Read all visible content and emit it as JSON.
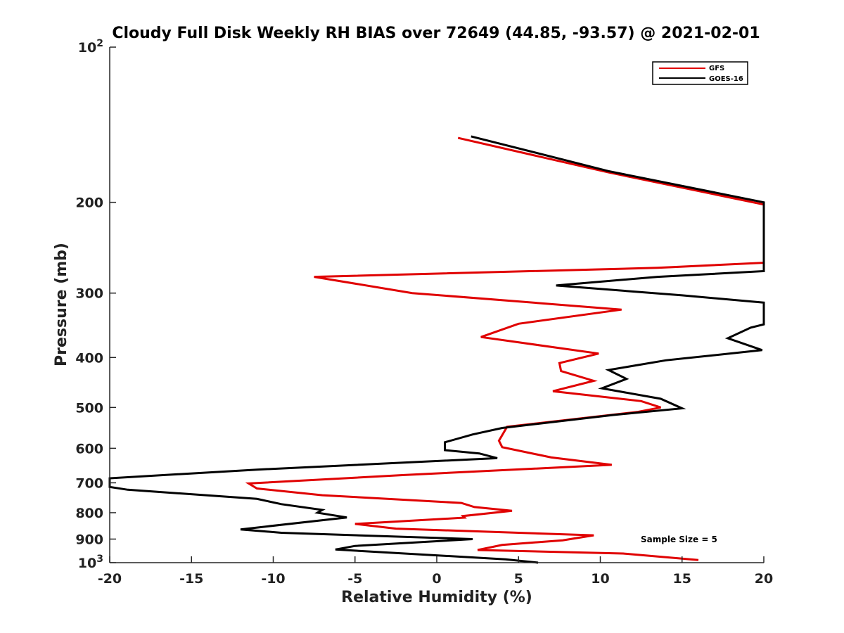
{
  "chart_data": {
    "type": "line",
    "orientation": "vertical-profile",
    "title": "Cloudy Full Disk Weekly RH BIAS over 72649 (44.85, -93.57) @ 2021-02-01",
    "xlabel": "Relative Humidity (%)",
    "ylabel": "Pressure (mb)",
    "xlim": [
      -20,
      20
    ],
    "ylim": [
      100,
      1000
    ],
    "y_scale": "log",
    "y_reversed": true,
    "grid": false,
    "legend_position": "top-right",
    "x_ticks": [
      {
        "value": -20,
        "label": "-20"
      },
      {
        "value": -15,
        "label": "-15"
      },
      {
        "value": -10,
        "label": "-10"
      },
      {
        "value": -5,
        "label": "-5"
      },
      {
        "value": 0,
        "label": "0"
      },
      {
        "value": 5,
        "label": "5"
      },
      {
        "value": 10,
        "label": "10"
      },
      {
        "value": 15,
        "label": "15"
      },
      {
        "value": 20,
        "label": "20"
      }
    ],
    "y_ticks": [
      {
        "value": 100,
        "base": "10",
        "exp": "2"
      },
      {
        "value": 200,
        "label": "200"
      },
      {
        "value": 300,
        "label": "300"
      },
      {
        "value": 400,
        "label": "400"
      },
      {
        "value": 500,
        "label": "500"
      },
      {
        "value": 600,
        "label": "600"
      },
      {
        "value": 700,
        "label": "700"
      },
      {
        "value": 800,
        "label": "800"
      },
      {
        "value": 900,
        "label": "900"
      },
      {
        "value": 1000,
        "base": "10",
        "exp": "3"
      }
    ],
    "annotation": "Sample Size = 5",
    "series": [
      {
        "name": "GFS",
        "color": "#e00000",
        "points": [
          {
            "x": 1.3,
            "p": 150
          },
          {
            "x": 10.5,
            "p": 175
          },
          {
            "x": 20,
            "p": 202
          },
          {
            "x": 20,
            "p": 262
          },
          {
            "x": 13.5,
            "p": 268
          },
          {
            "x": -7.5,
            "p": 279
          },
          {
            "x": -1.5,
            "p": 300
          },
          {
            "x": 11.3,
            "p": 323
          },
          {
            "x": 5.0,
            "p": 344
          },
          {
            "x": 2.7,
            "p": 365
          },
          {
            "x": 9.9,
            "p": 393
          },
          {
            "x": 7.5,
            "p": 410
          },
          {
            "x": 7.6,
            "p": 425
          },
          {
            "x": 9.6,
            "p": 444
          },
          {
            "x": 7.1,
            "p": 465
          },
          {
            "x": 12.5,
            "p": 486
          },
          {
            "x": 13.7,
            "p": 500
          },
          {
            "x": 12.3,
            "p": 510
          },
          {
            "x": 4.3,
            "p": 545
          },
          {
            "x": 3.8,
            "p": 580
          },
          {
            "x": 4.0,
            "p": 597
          },
          {
            "x": 7.0,
            "p": 625
          },
          {
            "x": 10.7,
            "p": 646
          },
          {
            "x": -2.0,
            "p": 676
          },
          {
            "x": -11.5,
            "p": 702
          },
          {
            "x": -11.0,
            "p": 718
          },
          {
            "x": -7.0,
            "p": 740
          },
          {
            "x": 1.5,
            "p": 766
          },
          {
            "x": 2.3,
            "p": 780
          },
          {
            "x": 4.6,
            "p": 793
          },
          {
            "x": 1.6,
            "p": 812
          },
          {
            "x": 1.7,
            "p": 818
          },
          {
            "x": -5.0,
            "p": 841
          },
          {
            "x": -2.5,
            "p": 859
          },
          {
            "x": 9.6,
            "p": 885
          },
          {
            "x": 7.7,
            "p": 905
          },
          {
            "x": 4.0,
            "p": 924
          },
          {
            "x": 2.5,
            "p": 945
          },
          {
            "x": 11.4,
            "p": 960
          },
          {
            "x": 16.0,
            "p": 988
          }
        ]
      },
      {
        "name": "GOES-16",
        "color": "#000000",
        "points": [
          {
            "x": 2.1,
            "p": 149
          },
          {
            "x": 10.5,
            "p": 174
          },
          {
            "x": 20,
            "p": 200
          },
          {
            "x": 20,
            "p": 272
          },
          {
            "x": 13.5,
            "p": 279
          },
          {
            "x": 7.3,
            "p": 290
          },
          {
            "x": 15.0,
            "p": 303
          },
          {
            "x": 20,
            "p": 313
          },
          {
            "x": 20,
            "p": 345
          },
          {
            "x": 19.2,
            "p": 350
          },
          {
            "x": 17.8,
            "p": 367
          },
          {
            "x": 19.9,
            "p": 387
          },
          {
            "x": 14.0,
            "p": 405
          },
          {
            "x": 10.5,
            "p": 423
          },
          {
            "x": 11.6,
            "p": 440
          },
          {
            "x": 10.1,
            "p": 459
          },
          {
            "x": 13.7,
            "p": 481
          },
          {
            "x": 15.0,
            "p": 502
          },
          {
            "x": 10.8,
            "p": 517
          },
          {
            "x": 4.0,
            "p": 548
          },
          {
            "x": 2.2,
            "p": 564
          },
          {
            "x": 0.5,
            "p": 584
          },
          {
            "x": 0.5,
            "p": 605
          },
          {
            "x": 2.6,
            "p": 614
          },
          {
            "x": 3.7,
            "p": 627
          },
          {
            "x": -11.0,
            "p": 660
          },
          {
            "x": -20,
            "p": 686
          },
          {
            "x": -20,
            "p": 713
          },
          {
            "x": -18.9,
            "p": 722
          },
          {
            "x": -11.0,
            "p": 752
          },
          {
            "x": -9.5,
            "p": 770
          },
          {
            "x": -7.0,
            "p": 790
          },
          {
            "x": -7.3,
            "p": 800
          },
          {
            "x": -5.5,
            "p": 817
          },
          {
            "x": -12.0,
            "p": 862
          },
          {
            "x": -9.5,
            "p": 875
          },
          {
            "x": 2.2,
            "p": 900
          },
          {
            "x": -5.0,
            "p": 928
          },
          {
            "x": -6.2,
            "p": 943
          },
          {
            "x": 4.2,
            "p": 985
          },
          {
            "x": 6.2,
            "p": 1000
          }
        ]
      }
    ]
  }
}
